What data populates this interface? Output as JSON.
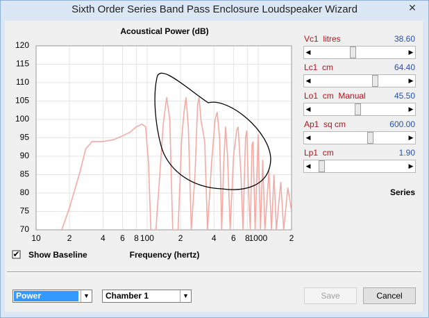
{
  "window": {
    "title": "Sixth Order Series Band Pass Enclosure Loudspeaker Wizard"
  },
  "chart_data": {
    "type": "line",
    "title": "Acoustical Power (dB)",
    "x_label": "Frequency (hertz)",
    "x": [
      17,
      20,
      25,
      28,
      32,
      40,
      50,
      60,
      70,
      80,
      90,
      97,
      103,
      108,
      120,
      130,
      140,
      150,
      160,
      170,
      190,
      205,
      215,
      224,
      235,
      250,
      270,
      285,
      294,
      305,
      330,
      350,
      380,
      410,
      427,
      450,
      470,
      490,
      509,
      530,
      560,
      600,
      640,
      660,
      700,
      730,
      770,
      790,
      820,
      850,
      880,
      900,
      940,
      1000,
      1050,
      1100,
      1150,
      1250,
      1320,
      1390,
      1460,
      1600,
      1700,
      1850,
      2000
    ],
    "series": [
      {
        "color": "#f4aaa4",
        "values": [
          70,
          76,
          86,
          92,
          94,
          94,
          94.5,
          95.5,
          96.5,
          98,
          98.7,
          98,
          88,
          70,
          70,
          85,
          99,
          106,
          100,
          70,
          70,
          95,
          102,
          106,
          98,
          70,
          85,
          104,
          106,
          100,
          94,
          70,
          88,
          100,
          102,
          95,
          70,
          88,
          98,
          90,
          70,
          90,
          97,
          98,
          85,
          70,
          95,
          97,
          80,
          70,
          93,
          94,
          70,
          96,
          70,
          89,
          70,
          86,
          70,
          85,
          70,
          83,
          70,
          81.5,
          75
        ]
      }
    ],
    "xlim": [
      10,
      2000
    ],
    "ylim": [
      70,
      120
    ],
    "x_log": true,
    "grid": true,
    "xticks": [
      10,
      {
        "value": 20,
        "label": "2"
      },
      {
        "value": 40,
        "label": "4"
      },
      {
        "value": 60,
        "label": "6"
      },
      {
        "value": 80,
        "label": "8"
      },
      100,
      {
        "value": 200,
        "label": "2"
      },
      {
        "value": 400,
        "label": "4"
      },
      {
        "value": 600,
        "label": "6"
      },
      {
        "value": 800,
        "label": "8"
      },
      1000,
      {
        "value": 2000,
        "label": "2"
      }
    ],
    "yticks": [
      70,
      75,
      80,
      85,
      90,
      95,
      100,
      105,
      110,
      115,
      120
    ]
  },
  "sliders": [
    {
      "label": "Vc1  litres",
      "value": "38.60"
    },
    {
      "label": "Lc1  cm",
      "value": "64.40"
    },
    {
      "label": "Lo1  cm  Manual",
      "value": "45.50"
    },
    {
      "label": "Ap1  sq cm",
      "value": "600.00"
    },
    {
      "label": "Lp1  cm",
      "value": "1.90"
    }
  ],
  "series_label": "Series",
  "checkbox": {
    "label": "Show Baseline",
    "checked": true
  },
  "dropdowns": [
    {
      "value": "Power"
    },
    {
      "value": "Chamber 1"
    }
  ],
  "buttons": [
    {
      "label": "Save",
      "enabled": false
    },
    {
      "label": "Cancel",
      "enabled": true
    }
  ]
}
